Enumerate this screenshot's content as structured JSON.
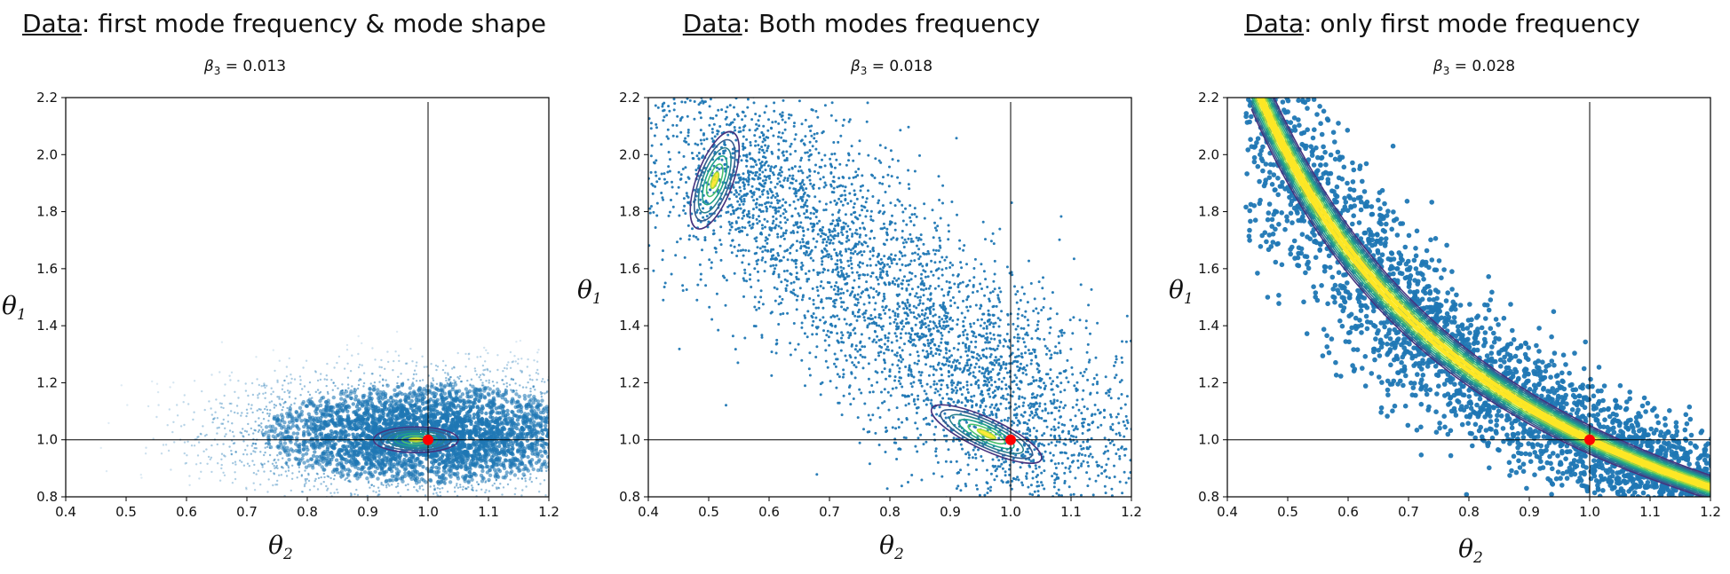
{
  "panels": [
    {
      "heading_prefix": "Data",
      "heading_rest": ": first mode frequency & mode shape",
      "beta_symbol": "β",
      "beta_sub": "3",
      "beta_value": " = 0.013",
      "x_symbol": "θ",
      "x_sub": "2",
      "y_symbol": "θ",
      "y_sub": "1"
    },
    {
      "heading_prefix": "Data",
      "heading_rest": ": Both modes frequency",
      "beta_symbol": "β",
      "beta_sub": "3",
      "beta_value": " = 0.018",
      "x_symbol": "θ",
      "x_sub": "2",
      "y_symbol": "θ",
      "y_sub": "1"
    },
    {
      "heading_prefix": "Data",
      "heading_rest": ": only first mode frequency",
      "beta_symbol": "β",
      "beta_sub": "3",
      "beta_value": " = 0.028",
      "x_symbol": "θ",
      "x_sub": "2",
      "y_symbol": "θ",
      "y_sub": "1"
    }
  ],
  "chart_data": [
    {
      "type": "scatter",
      "xlim": [
        0.4,
        1.2
      ],
      "ylim": [
        0.8,
        2.2
      ],
      "x_ticks": [
        "0.4",
        "0.5",
        "0.6",
        "0.7",
        "0.8",
        "0.9",
        "1.0",
        "1.1",
        "1.2"
      ],
      "y_ticks": [
        "0.8",
        "1.0",
        "1.2",
        "1.4",
        "1.6",
        "1.8",
        "2.0",
        "2.2"
      ],
      "reference_point": [
        1.0,
        1.0
      ],
      "samples": {
        "shape": "cloud",
        "center": [
          1.0,
          1.02
        ],
        "spread": [
          0.17,
          0.11
        ],
        "count": 4500
      },
      "posterior_mode": [
        0.98,
        1.0
      ],
      "contour_levels": 6,
      "colors": {
        "samples": "#1f77b4",
        "reference": "#ff0000"
      }
    },
    {
      "type": "scatter",
      "xlim": [
        0.4,
        1.2
      ],
      "ylim": [
        0.8,
        2.2
      ],
      "x_ticks": [
        "0.4",
        "0.5",
        "0.6",
        "0.7",
        "0.8",
        "0.9",
        "1.0",
        "1.1",
        "1.2"
      ],
      "y_ticks": [
        "0.8",
        "1.0",
        "1.2",
        "1.4",
        "1.6",
        "1.8",
        "2.0",
        "2.2"
      ],
      "reference_point": [
        1.0,
        1.0
      ],
      "samples": {
        "shape": "diagonal-band",
        "from": [
          0.47,
          2.1
        ],
        "to": [
          1.12,
          0.9
        ],
        "count": 4000
      },
      "posterior_modes": [
        [
          0.51,
          1.91
        ],
        [
          0.96,
          1.02
        ]
      ],
      "contour_levels": 6,
      "colors": {
        "samples": "#1f77b4",
        "reference": "#ff0000"
      }
    },
    {
      "type": "scatter",
      "xlim": [
        0.4,
        1.2
      ],
      "ylim": [
        0.8,
        2.2
      ],
      "x_ticks": [
        "0.4",
        "0.5",
        "0.6",
        "0.7",
        "0.8",
        "0.9",
        "1.0",
        "1.1",
        "1.2"
      ],
      "y_ticks": [
        "0.8",
        "1.0",
        "1.2",
        "1.4",
        "1.6",
        "1.8",
        "2.0",
        "2.2"
      ],
      "reference_point": [
        1.0,
        1.0
      ],
      "samples": {
        "shape": "hyperbolic-ridge",
        "relation": "theta1 * theta2 = 1",
        "count": 3000
      },
      "contour_levels": 8,
      "colors": {
        "samples": "#1f77b4",
        "reference": "#ff0000"
      }
    }
  ]
}
